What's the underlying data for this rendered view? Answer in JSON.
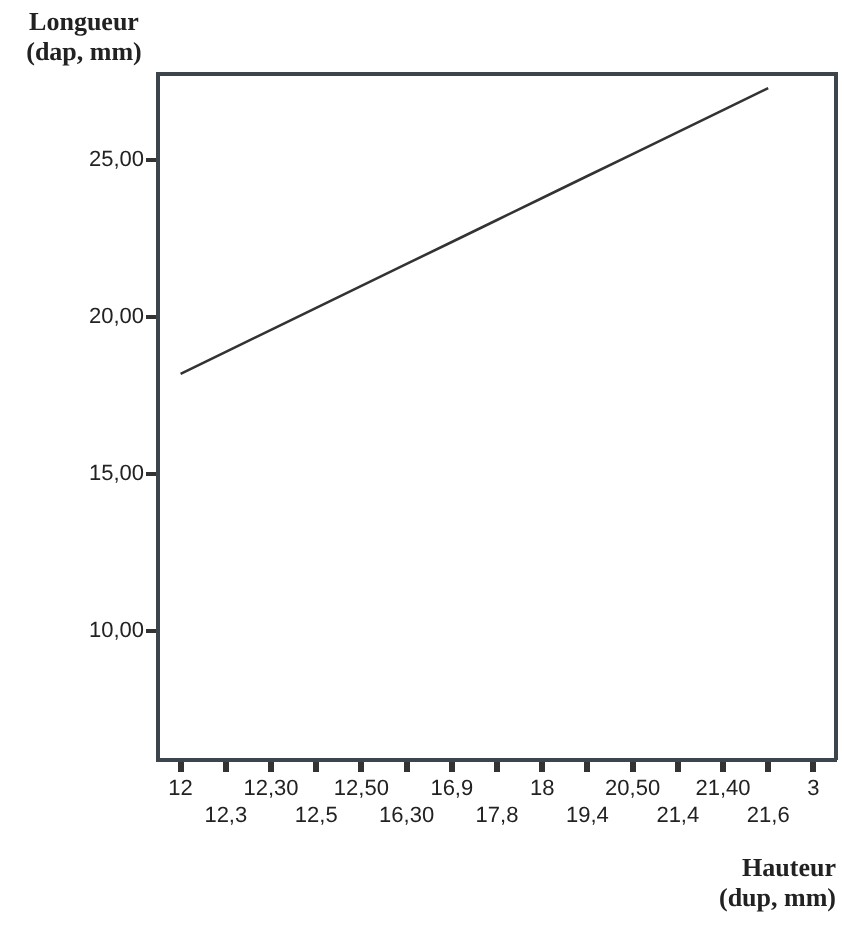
{
  "chart_data": {
    "type": "line",
    "xlabel": "Hauteur (dup, mm)",
    "ylabel": "Longueur (dap, mm)",
    "categories": [
      "12",
      "12,3",
      "12,30",
      "12,5",
      "12,50",
      "16,30",
      "16,9",
      "17,8",
      "18",
      "19,4",
      "20,50",
      "21,4",
      "21,40",
      "21,6",
      "3"
    ],
    "values": [
      18.2,
      18.9,
      19.6,
      20.3,
      21.0,
      21.7,
      22.4,
      23.1,
      23.8,
      24.5,
      25.2,
      25.9,
      26.6,
      27.3,
      null
    ],
    "color": "#333333",
    "ylim": [
      5.9,
      27.75
    ],
    "yticks": [
      {
        "value": 10,
        "label": "10,00"
      },
      {
        "value": 15,
        "label": "15,00"
      },
      {
        "value": 20,
        "label": "20,00"
      },
      {
        "value": 25,
        "label": "25,00"
      }
    ],
    "grid": false,
    "legend": false,
    "marker": "none",
    "line_style": "solid"
  }
}
